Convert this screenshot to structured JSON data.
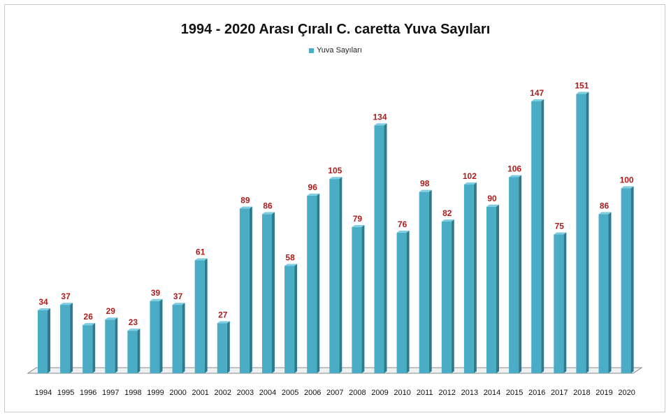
{
  "chart_data": {
    "type": "bar",
    "title": "1994 - 2020 Arası Çıralı C. caretta Yuva Sayıları",
    "xlabel": "",
    "ylabel": "",
    "legend": {
      "position": "top",
      "entries": [
        "Yuva Sayıları"
      ]
    },
    "grid": false,
    "ylim": [
      0,
      160
    ],
    "categories": [
      "1994",
      "1995",
      "1996",
      "1997",
      "1998",
      "1999",
      "2000",
      "2001",
      "2002",
      "2003",
      "2004",
      "2005",
      "2006",
      "2007",
      "2008",
      "2009",
      "2010",
      "2011",
      "2012",
      "2013",
      "2014",
      "2015",
      "2016",
      "2017",
      "2018",
      "2019",
      "2020"
    ],
    "series": [
      {
        "name": "Yuva Sayıları",
        "values": [
          34,
          37,
          26,
          29,
          23,
          39,
          37,
          61,
          27,
          89,
          86,
          58,
          96,
          105,
          79,
          134,
          76,
          98,
          82,
          102,
          90,
          106,
          147,
          75,
          151,
          86,
          100
        ]
      }
    ],
    "data_labels": true,
    "colors": {
      "bar_front": "#4bacc6",
      "bar_side": "#2c7c91",
      "bar_top": "#7fcde0",
      "label": "#b01c1c",
      "floor": "#8a8a8a"
    }
  }
}
